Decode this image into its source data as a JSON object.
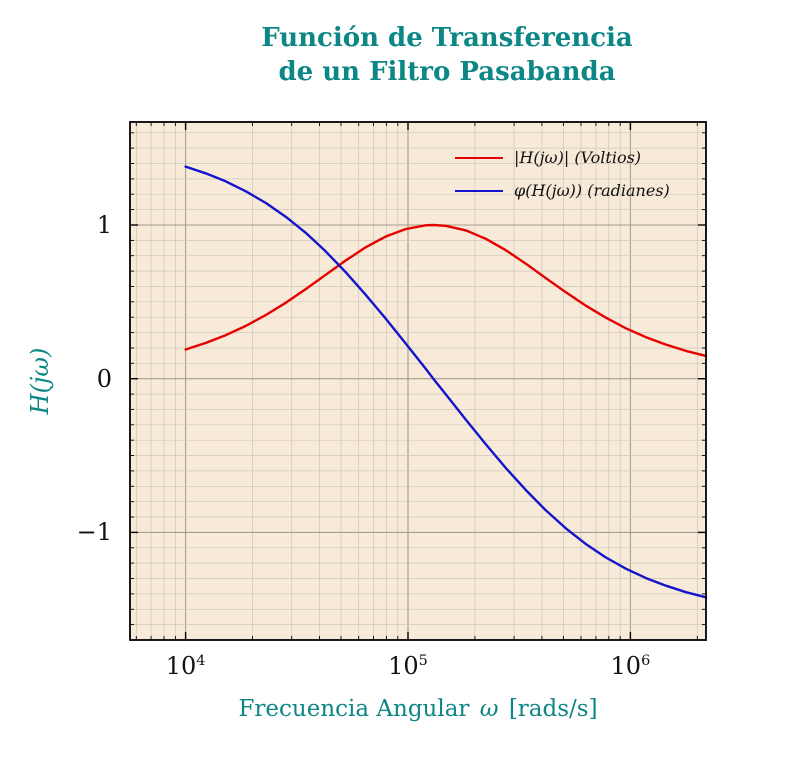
{
  "title": {
    "line1": "Función de Transferencia",
    "line2": "de un Filtro Pasabanda"
  },
  "colors": {
    "accent_teal": "#0d8686",
    "plot_bg": "#f7ead8",
    "grid_minor": "#cfc6ba",
    "grid_major": "#a59c8e",
    "frame": "#000000",
    "magnitude_red": "#e60000",
    "phase_blue": "#1414cc",
    "tick_text": "#111111"
  },
  "axes": {
    "y_label": "H(jω)",
    "x_label": {
      "prefix": "Frecuencia Angular",
      "symbol": "ω",
      "units": "[rads/s]"
    },
    "x_tick_labels": [
      {
        "base": "10",
        "exp": "4"
      },
      {
        "base": "10",
        "exp": "5"
      },
      {
        "base": "10",
        "exp": "6"
      }
    ],
    "y_tick_labels": [
      "−1",
      "0",
      "1"
    ]
  },
  "chart_data": {
    "type": "line",
    "title": "Función de Transferencia de un Filtro Pasabanda",
    "xlabel": "Frecuencia Angular ω [rads/s]",
    "ylabel": "H(jω)",
    "x_scale": "log",
    "xlim_log10": [
      3.75,
      6.34
    ],
    "ylim": [
      -1.7,
      1.67
    ],
    "x_major_ticks_log10": [
      4,
      5,
      6
    ],
    "y_major_ticks": [
      -1,
      0,
      1
    ],
    "y_minor_step": 0.1,
    "grid": "both",
    "legend_position": "top-right-inside",
    "log10_omega": [
      4.0,
      4.09,
      4.18,
      4.27,
      4.36,
      4.45,
      4.54,
      4.63,
      4.72,
      4.81,
      4.9,
      4.99,
      5.08,
      5.114,
      5.17,
      5.26,
      5.35,
      5.44,
      5.53,
      5.62,
      5.71,
      5.8,
      5.89,
      5.98,
      6.07,
      6.16,
      6.25,
      6.34
    ],
    "series": [
      {
        "name": "|H(jω)| (Voltios)",
        "color": "#e60000",
        "values": [
          0.19,
          0.232,
          0.283,
          0.343,
          0.414,
          0.494,
          0.583,
          0.676,
          0.769,
          0.855,
          0.925,
          0.974,
          0.998,
          1.0,
          0.995,
          0.965,
          0.91,
          0.836,
          0.748,
          0.654,
          0.562,
          0.475,
          0.397,
          0.328,
          0.27,
          0.222,
          0.181,
          0.148
        ]
      },
      {
        "name": "φ(H(jω)) (radianes)",
        "color": "#1414cc",
        "values": [
          1.38,
          1.336,
          1.284,
          1.22,
          1.144,
          1.054,
          0.949,
          0.828,
          0.693,
          0.546,
          0.39,
          0.228,
          0.064,
          0.0,
          -0.102,
          -0.266,
          -0.427,
          -0.581,
          -0.725,
          -0.857,
          -0.974,
          -1.076,
          -1.163,
          -1.236,
          -1.297,
          -1.347,
          -1.389,
          -1.422
        ]
      }
    ]
  }
}
